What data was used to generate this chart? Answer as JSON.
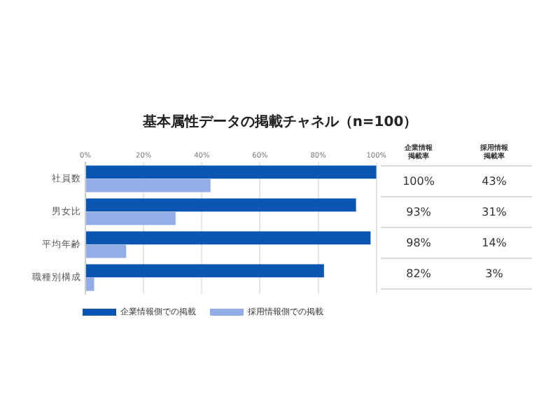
{
  "chart_data": {
    "type": "bar",
    "orientation": "horizontal",
    "title": "基本属性データの掲載チャネル（n=100）",
    "categories": [
      "社員数",
      "男女比",
      "平均年齢",
      "職種別構成"
    ],
    "series": [
      {
        "name": "企業情報側での掲載",
        "color": "#0b56b3",
        "values": [
          100,
          93,
          98,
          82
        ],
        "value_labels": [
          "100%",
          "93%",
          "98%",
          "82%"
        ]
      },
      {
        "name": "採用情報側での掲載",
        "color": "#93aee6",
        "values": [
          43,
          31,
          14,
          3
        ],
        "value_labels": [
          "43%",
          "31%",
          "14%",
          "3%"
        ]
      }
    ],
    "xlim": [
      0,
      100
    ],
    "xticks": [
      {
        "value": 0,
        "label": "0%"
      },
      {
        "value": 20,
        "label": "20%"
      },
      {
        "value": 40,
        "label": "40%"
      },
      {
        "value": 60,
        "label": "60%"
      },
      {
        "value": 80,
        "label": "80%"
      },
      {
        "value": 100,
        "label": "100%"
      }
    ],
    "grid": "x",
    "legend": "bottom",
    "annotations": [
      "企業情報掲載率",
      "採用情報掲載率"
    ]
  }
}
